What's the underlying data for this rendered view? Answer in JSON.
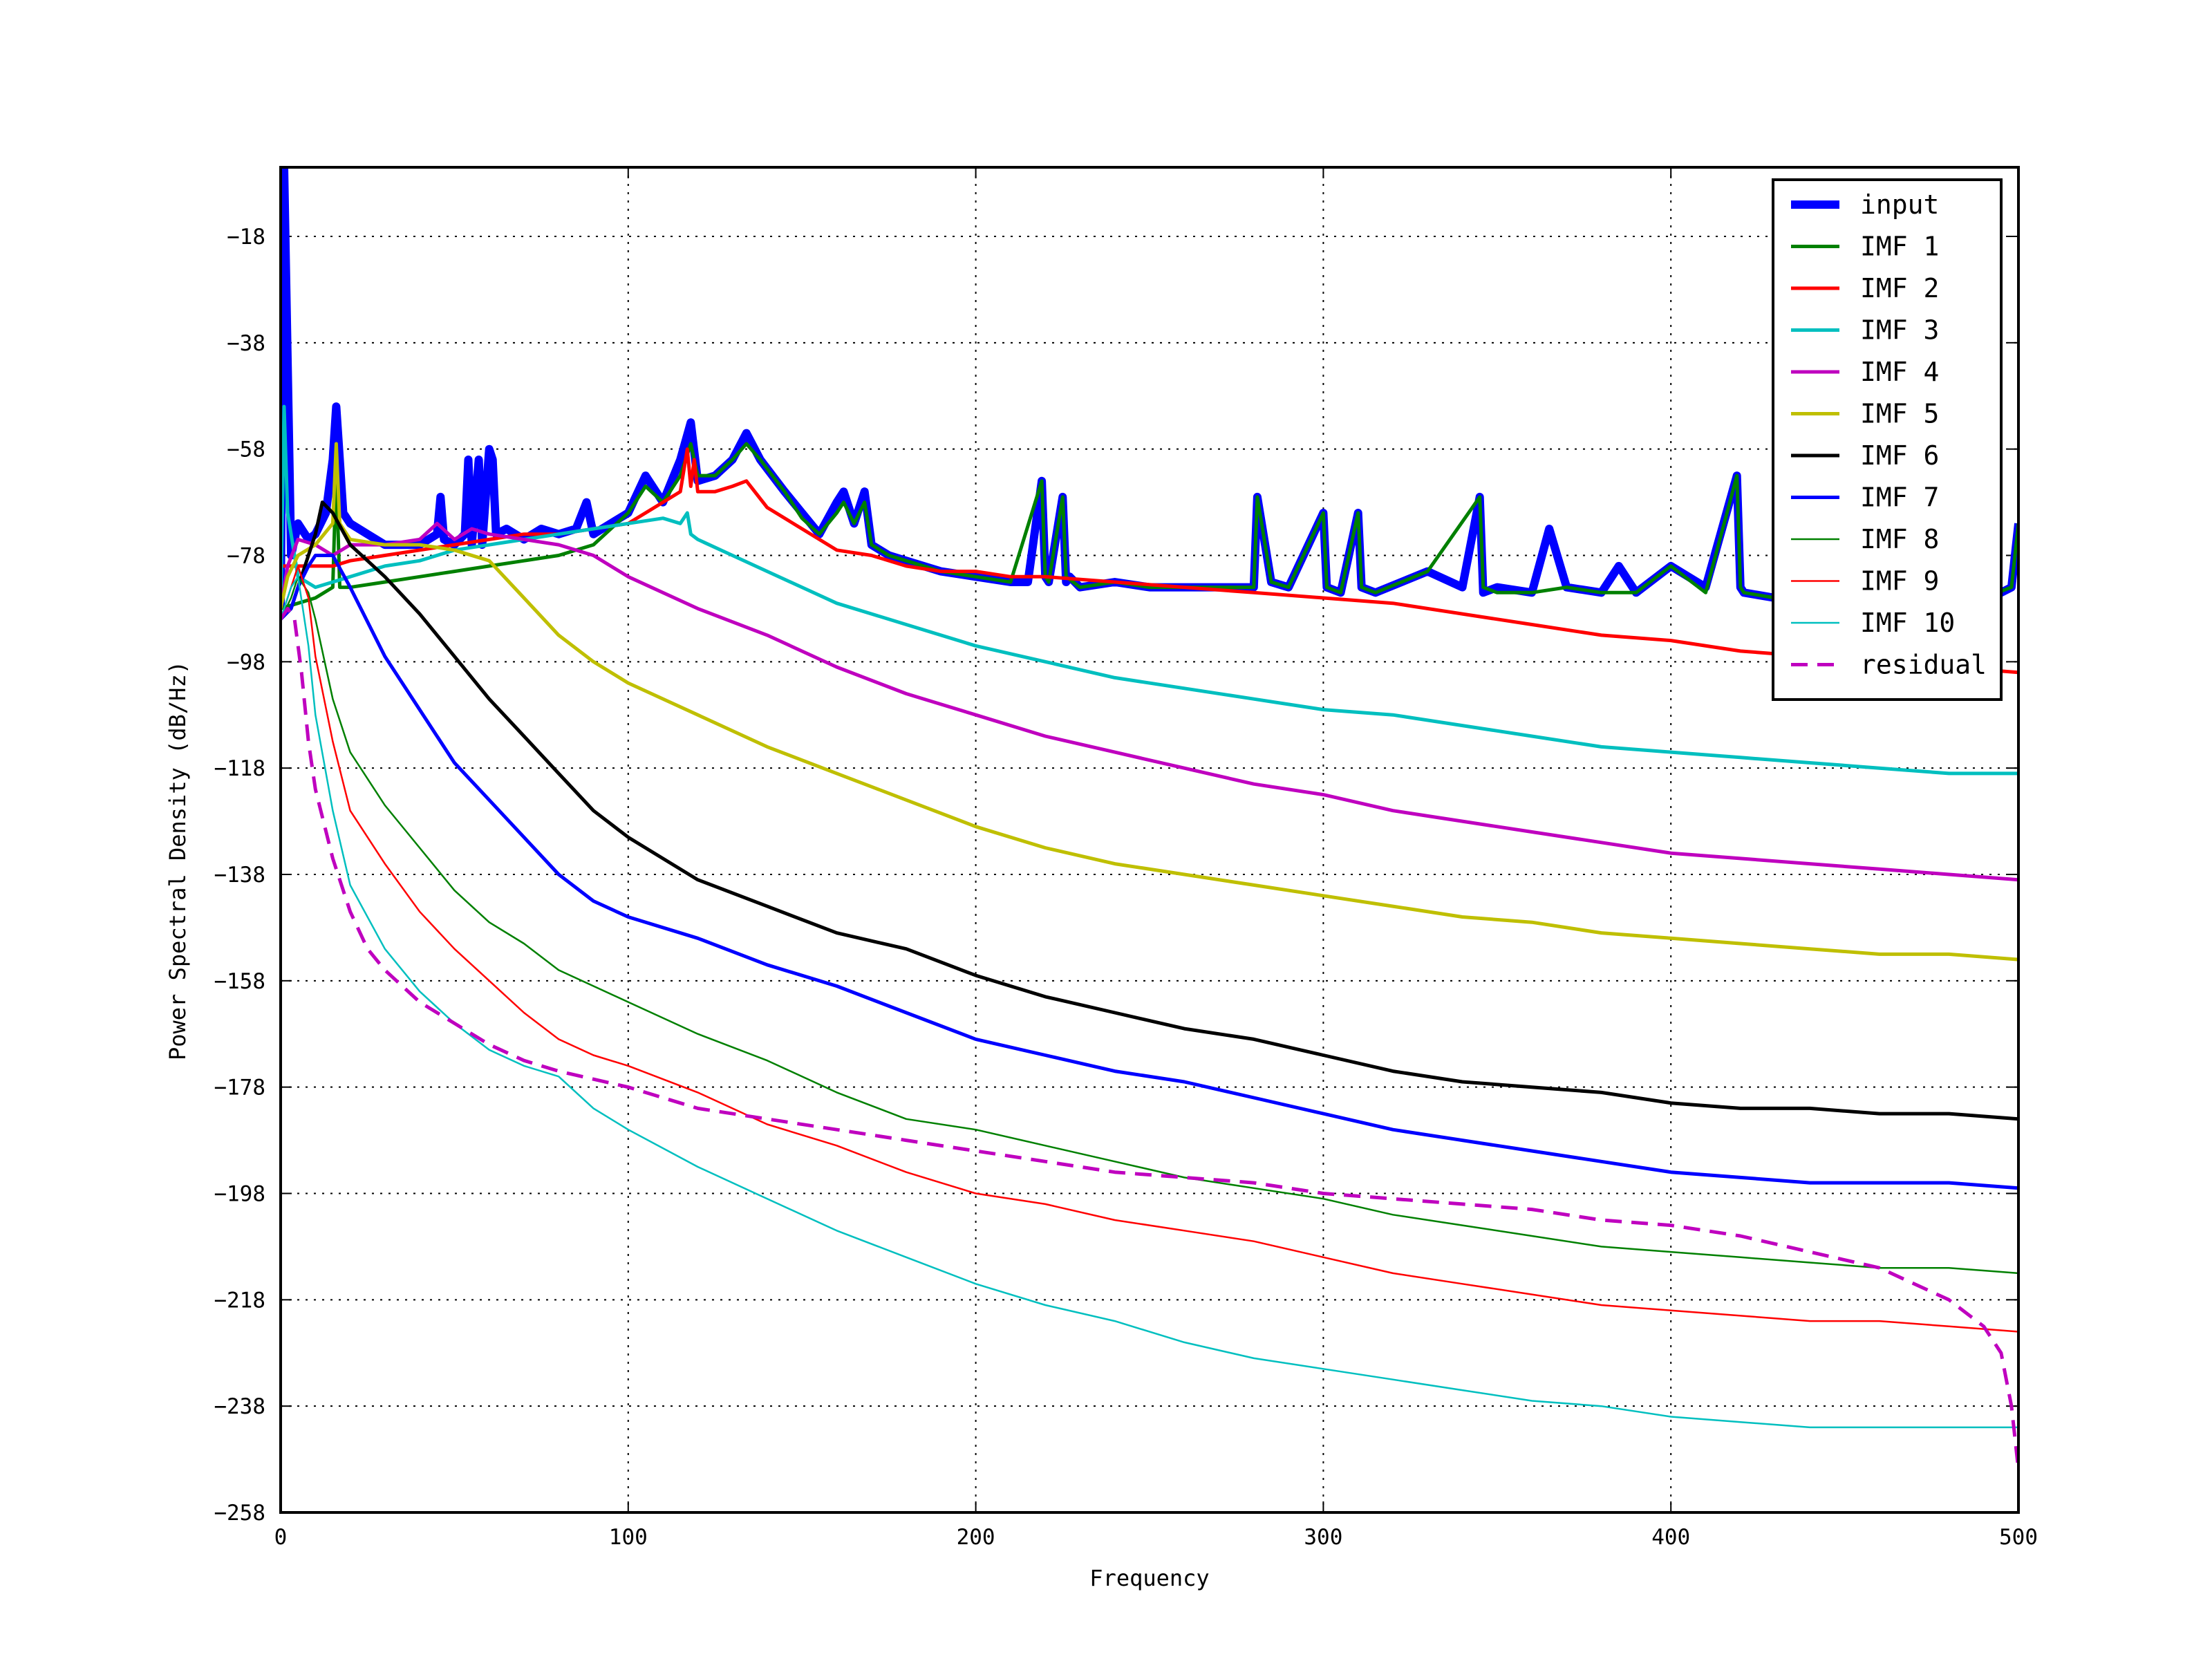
{
  "chart_data": {
    "type": "line",
    "title": "",
    "xlabel": "Frequency",
    "ylabel": "Power Spectral Density (dB/Hz)",
    "xlim": [
      0,
      500
    ],
    "ylim": [
      -258,
      -5
    ],
    "xticks": [
      0,
      100,
      200,
      300,
      400,
      500
    ],
    "xtick_labels": [
      "0",
      "100",
      "200",
      "300",
      "400",
      "500"
    ],
    "yticks": [
      -18,
      -38,
      -58,
      -78,
      -98,
      -118,
      -138,
      -158,
      -178,
      -198,
      -218,
      -238,
      -258
    ],
    "ytick_labels": [
      "−18",
      "−38",
      "−58",
      "−78",
      "−98",
      "−118",
      "−138",
      "−158",
      "−178",
      "−198",
      "−218",
      "−238",
      "−258"
    ],
    "grid": true,
    "legend_position": "top-right",
    "series": [
      {
        "name": "input",
        "color": "#0000ff",
        "style": "solid",
        "weight": "thick",
        "x": [
          0,
          1,
          3,
          5,
          8,
          10,
          13,
          15,
          16,
          17,
          18,
          20,
          25,
          30,
          40,
          45,
          46,
          47,
          50,
          53,
          54,
          55,
          57,
          58,
          60,
          61,
          62,
          65,
          70,
          75,
          80,
          85,
          88,
          90,
          95,
          100,
          105,
          110,
          115,
          118,
          120,
          125,
          130,
          134,
          138,
          145,
          150,
          155,
          160,
          162,
          165,
          168,
          170,
          175,
          180,
          190,
          200,
          210,
          215,
          219,
          220,
          221,
          225,
          226,
          227,
          230,
          240,
          250,
          260,
          270,
          280,
          281,
          285,
          290,
          300,
          301,
          305,
          310,
          311,
          315,
          330,
          340,
          345,
          346,
          350,
          360,
          365,
          370,
          380,
          385,
          390,
          400,
          410,
          419,
          420,
          421,
          430,
          440,
          450,
          460,
          470,
          480,
          490,
          495,
          498,
          500
        ],
        "y": [
          -88,
          -5,
          -78,
          -72,
          -75,
          -74,
          -70,
          -60,
          -50,
          -60,
          -70,
          -72,
          -74,
          -76,
          -76,
          -74,
          -67,
          -75,
          -76,
          -74,
          -60,
          -76,
          -60,
          -76,
          -58,
          -60,
          -74,
          -73,
          -75,
          -73,
          -74,
          -73,
          -68,
          -74,
          -72,
          -70,
          -63,
          -68,
          -60,
          -53,
          -64,
          -63,
          -60,
          -55,
          -60,
          -66,
          -70,
          -74,
          -68,
          -66,
          -72,
          -66,
          -76,
          -78,
          -79,
          -81,
          -82,
          -83,
          -83,
          -64,
          -82,
          -83,
          -67,
          -83,
          -82,
          -84,
          -83,
          -84,
          -84,
          -84,
          -84,
          -67,
          -83,
          -84,
          -70,
          -84,
          -85,
          -70,
          -84,
          -85,
          -81,
          -84,
          -67,
          -85,
          -84,
          -85,
          -73,
          -84,
          -85,
          -80,
          -85,
          -80,
          -84,
          -63,
          -84,
          -85,
          -86,
          -85,
          -86,
          -86,
          -85,
          -86,
          -86,
          -85,
          -84,
          -72
        ]
      },
      {
        "name": "IMF 1",
        "color": "#008000",
        "style": "solid",
        "weight": "normal",
        "x": [
          0,
          5,
          10,
          15,
          16,
          17,
          20,
          30,
          40,
          50,
          60,
          70,
          80,
          90,
          100,
          105,
          110,
          115,
          118,
          120,
          125,
          130,
          134,
          138,
          145,
          150,
          155,
          160,
          162,
          165,
          168,
          170,
          175,
          180,
          190,
          200,
          210,
          219,
          220,
          221,
          225,
          226,
          230,
          240,
          250,
          260,
          270,
          280,
          281,
          285,
          290,
          300,
          301,
          305,
          310,
          311,
          315,
          330,
          345,
          346,
          350,
          360,
          370,
          380,
          390,
          400,
          410,
          419,
          420,
          421,
          430,
          440,
          450,
          460,
          470,
          480,
          490,
          498,
          500
        ],
        "y": [
          -88,
          -87,
          -86,
          -84,
          -62,
          -84,
          -84,
          -83,
          -82,
          -81,
          -80,
          -79,
          -78,
          -76,
          -70,
          -65,
          -68,
          -63,
          -57,
          -63,
          -63,
          -60,
          -57,
          -60,
          -66,
          -71,
          -74,
          -70,
          -68,
          -72,
          -68,
          -76,
          -78,
          -79,
          -81,
          -82,
          -83,
          -64,
          -82,
          -83,
          -67,
          -82,
          -84,
          -83,
          -84,
          -84,
          -84,
          -84,
          -67,
          -83,
          -84,
          -70,
          -84,
          -85,
          -70,
          -84,
          -85,
          -81,
          -67,
          -84,
          -85,
          -85,
          -84,
          -85,
          -85,
          -80,
          -85,
          -63,
          -84,
          -85,
          -86,
          -85,
          -86,
          -86,
          -85,
          -86,
          -86,
          -84,
          -72
        ]
      },
      {
        "name": "IMF 2",
        "color": "#ff0000",
        "style": "solid",
        "weight": "normal",
        "x": [
          0,
          5,
          10,
          15,
          20,
          30,
          40,
          50,
          60,
          70,
          80,
          90,
          100,
          105,
          110,
          115,
          117,
          118,
          119,
          120,
          125,
          130,
          134,
          140,
          150,
          160,
          170,
          180,
          190,
          200,
          210,
          220,
          240,
          260,
          280,
          300,
          320,
          340,
          360,
          380,
          400,
          420,
          440,
          460,
          480,
          500
        ],
        "y": [
          -80,
          -80,
          -80,
          -80,
          -79,
          -78,
          -77,
          -76,
          -75,
          -74,
          -74,
          -73,
          -72,
          -70,
          -68,
          -66,
          -58,
          -65,
          -60,
          -66,
          -66,
          -65,
          -64,
          -69,
          -73,
          -77,
          -78,
          -80,
          -81,
          -81,
          -82,
          -82,
          -83,
          -84,
          -85,
          -86,
          -87,
          -89,
          -91,
          -93,
          -94,
          -96,
          -97,
          -98,
          -99,
          -100
        ]
      },
      {
        "name": "IMF 3",
        "color": "#00bfbf",
        "style": "solid",
        "weight": "normal",
        "x": [
          0,
          1,
          2,
          5,
          10,
          20,
          30,
          40,
          50,
          60,
          70,
          80,
          90,
          100,
          110,
          115,
          117,
          118,
          120,
          130,
          140,
          150,
          160,
          180,
          200,
          220,
          240,
          260,
          280,
          300,
          320,
          340,
          360,
          380,
          400,
          420,
          440,
          460,
          480,
          500
        ],
        "y": [
          -88,
          -50,
          -70,
          -82,
          -84,
          -82,
          -80,
          -79,
          -77,
          -76,
          -75,
          -74,
          -73,
          -72,
          -71,
          -72,
          -70,
          -74,
          -75,
          -78,
          -81,
          -84,
          -87,
          -91,
          -95,
          -98,
          -101,
          -103,
          -105,
          -107,
          -108,
          -110,
          -112,
          -114,
          -115,
          -116,
          -117,
          -118,
          -119,
          -119
        ]
      },
      {
        "name": "IMF 4",
        "color": "#bf00bf",
        "style": "solid",
        "weight": "normal",
        "x": [
          0,
          2,
          5,
          10,
          15,
          20,
          30,
          40,
          45,
          50,
          55,
          60,
          70,
          80,
          90,
          100,
          120,
          140,
          160,
          180,
          200,
          220,
          240,
          260,
          280,
          300,
          320,
          340,
          360,
          380,
          400,
          420,
          440,
          460,
          480,
          500
        ],
        "y": [
          -88,
          -80,
          -75,
          -76,
          -78,
          -76,
          -76,
          -75,
          -72,
          -75,
          -73,
          -74,
          -75,
          -76,
          -78,
          -82,
          -88,
          -93,
          -99,
          -104,
          -108,
          -112,
          -115,
          -118,
          -121,
          -123,
          -126,
          -128,
          -130,
          -132,
          -134,
          -135,
          -136,
          -137,
          -138,
          -139
        ]
      },
      {
        "name": "IMF 5",
        "color": "#bfbf00",
        "style": "solid",
        "weight": "normal",
        "x": [
          0,
          2,
          5,
          10,
          15,
          16,
          17,
          20,
          30,
          40,
          50,
          60,
          70,
          80,
          90,
          100,
          120,
          140,
          160,
          180,
          200,
          220,
          240,
          260,
          280,
          300,
          320,
          340,
          360,
          380,
          400,
          420,
          440,
          460,
          480,
          500
        ],
        "y": [
          -88,
          -82,
          -78,
          -76,
          -72,
          -57,
          -72,
          -75,
          -76,
          -76,
          -77,
          -79,
          -86,
          -93,
          -98,
          -102,
          -108,
          -114,
          -119,
          -124,
          -129,
          -133,
          -136,
          -138,
          -140,
          -142,
          -144,
          -146,
          -147,
          -149,
          -150,
          -151,
          -152,
          -153,
          -153,
          -154
        ]
      },
      {
        "name": "IMF 6",
        "color": "#000000",
        "style": "solid",
        "weight": "normal",
        "x": [
          0,
          3,
          5,
          8,
          10,
          12,
          15,
          20,
          30,
          40,
          50,
          60,
          70,
          80,
          90,
          100,
          120,
          140,
          160,
          180,
          200,
          220,
          240,
          260,
          280,
          300,
          320,
          340,
          360,
          380,
          400,
          420,
          440,
          460,
          480,
          500
        ],
        "y": [
          -90,
          -88,
          -84,
          -78,
          -74,
          -68,
          -70,
          -76,
          -82,
          -89,
          -97,
          -105,
          -112,
          -119,
          -126,
          -131,
          -139,
          -144,
          -149,
          -152,
          -157,
          -161,
          -164,
          -167,
          -169,
          -172,
          -175,
          -177,
          -178,
          -179,
          -181,
          -182,
          -182,
          -183,
          -183,
          -184
        ]
      },
      {
        "name": "IMF 7",
        "color": "#0000ff",
        "style": "solid",
        "weight": "normal",
        "x": [
          0,
          3,
          5,
          8,
          10,
          15,
          20,
          30,
          40,
          50,
          60,
          70,
          80,
          90,
          100,
          120,
          140,
          160,
          180,
          200,
          220,
          240,
          260,
          280,
          300,
          320,
          340,
          360,
          380,
          400,
          420,
          440,
          460,
          480,
          500
        ],
        "y": [
          -90,
          -88,
          -84,
          -80,
          -78,
          -78,
          -84,
          -97,
          -107,
          -117,
          -124,
          -131,
          -138,
          -143,
          -146,
          -150,
          -155,
          -159,
          -164,
          -169,
          -172,
          -175,
          -177,
          -180,
          -183,
          -186,
          -188,
          -190,
          -192,
          -194,
          -195,
          -196,
          -196,
          -196,
          -197
        ]
      },
      {
        "name": "IMF 8",
        "color": "#008000",
        "style": "solid",
        "weight": "thin",
        "x": [
          0,
          3,
          5,
          8,
          10,
          15,
          20,
          30,
          40,
          50,
          60,
          70,
          80,
          90,
          100,
          120,
          140,
          160,
          180,
          200,
          220,
          240,
          260,
          280,
          300,
          320,
          340,
          360,
          380,
          400,
          420,
          440,
          460,
          480,
          500
        ],
        "y": [
          -90,
          -86,
          -82,
          -85,
          -90,
          -105,
          -115,
          -125,
          -133,
          -141,
          -147,
          -151,
          -156,
          -159,
          -162,
          -168,
          -173,
          -179,
          -184,
          -186,
          -189,
          -192,
          -195,
          -197,
          -199,
          -202,
          -204,
          -206,
          -208,
          -209,
          -210,
          -211,
          -212,
          -212,
          -213
        ]
      },
      {
        "name": "IMF 9",
        "color": "#ff0000",
        "style": "solid",
        "weight": "thin",
        "x": [
          0,
          3,
          5,
          8,
          10,
          15,
          20,
          30,
          40,
          50,
          60,
          70,
          80,
          90,
          100,
          120,
          140,
          160,
          180,
          200,
          220,
          240,
          260,
          280,
          300,
          320,
          340,
          360,
          380,
          400,
          420,
          440,
          460,
          480,
          500
        ],
        "y": [
          -90,
          -84,
          -80,
          -86,
          -97,
          -113,
          -126,
          -136,
          -145,
          -152,
          -158,
          -164,
          -169,
          -172,
          -174,
          -179,
          -185,
          -189,
          -194,
          -198,
          -200,
          -203,
          -205,
          -207,
          -210,
          -213,
          -215,
          -217,
          -219,
          -220,
          -221,
          -222,
          -222,
          -223,
          -224
        ]
      },
      {
        "name": "IMF 10",
        "color": "#00bfbf",
        "style": "solid",
        "weight": "thin",
        "x": [
          0,
          3,
          5,
          8,
          10,
          15,
          20,
          30,
          40,
          50,
          60,
          70,
          80,
          90,
          100,
          120,
          140,
          160,
          180,
          200,
          220,
          240,
          260,
          280,
          300,
          320,
          340,
          360,
          380,
          400,
          420,
          440,
          460,
          480,
          500
        ],
        "y": [
          -90,
          -84,
          -82,
          -95,
          -108,
          -126,
          -140,
          -152,
          -160,
          -166,
          -171,
          -174,
          -176,
          -182,
          -186,
          -193,
          -199,
          -205,
          -210,
          -215,
          -219,
          -222,
          -226,
          -229,
          -231,
          -233,
          -235,
          -237,
          -238,
          -240,
          -241,
          -242,
          -242,
          -242,
          -242
        ]
      },
      {
        "name": "residual",
        "color": "#bf00bf",
        "style": "dashed",
        "weight": "normal",
        "x": [
          0,
          2,
          4,
          6,
          8,
          10,
          15,
          20,
          25,
          30,
          40,
          50,
          60,
          70,
          80,
          100,
          120,
          140,
          160,
          180,
          200,
          220,
          240,
          260,
          280,
          300,
          320,
          340,
          360,
          380,
          400,
          420,
          440,
          460,
          480,
          490,
          495,
          498,
          500
        ],
        "y": [
          -90,
          -88,
          -90,
          -100,
          -113,
          -122,
          -135,
          -145,
          -152,
          -156,
          -162,
          -166,
          -170,
          -173,
          -175,
          -178,
          -182,
          -184,
          -186,
          -188,
          -190,
          -192,
          -194,
          -195,
          -196,
          -198,
          -199,
          -200,
          -201,
          -203,
          -204,
          -206,
          -209,
          -212,
          -218,
          -223,
          -228,
          -238,
          -250
        ]
      }
    ]
  }
}
